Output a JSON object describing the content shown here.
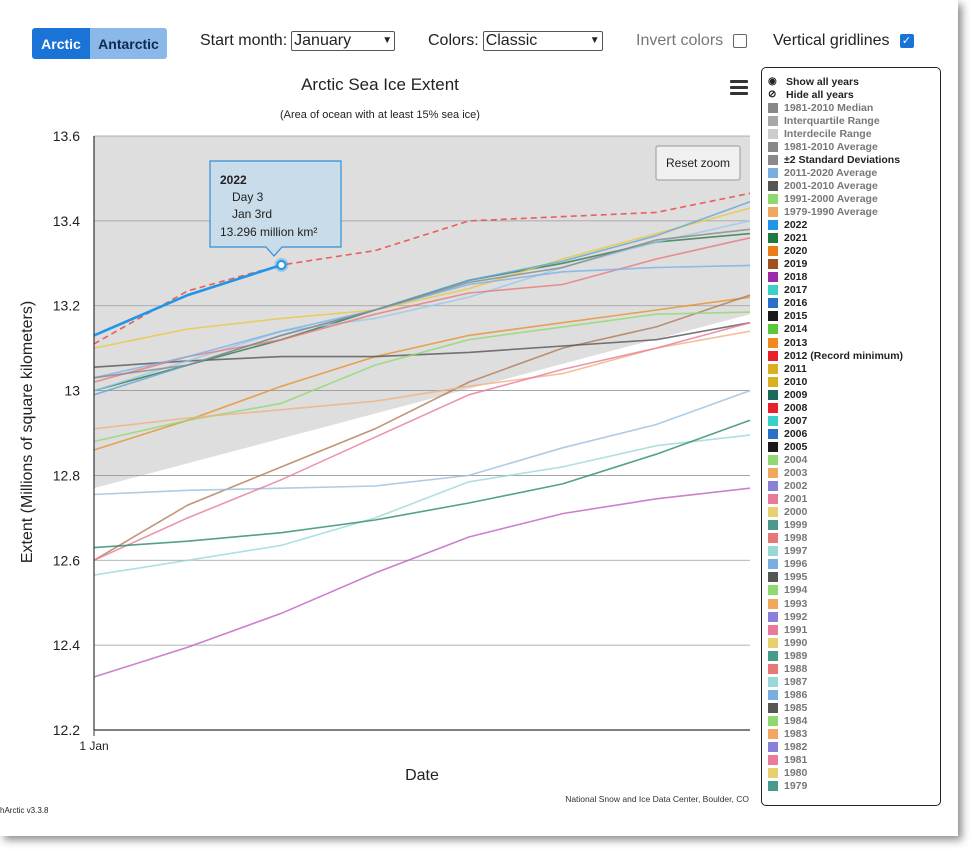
{
  "toolbar": {
    "arctic_label": "Arctic",
    "antarctic_label": "Antarctic",
    "start_month_label": "Start month:",
    "start_month_value": "January",
    "colors_label": "Colors:",
    "colors_value": "Classic",
    "invert_label": "Invert colors",
    "gridlines_label": "Vertical gridlines",
    "accent_color": "#1a73d6"
  },
  "footer": {
    "credit": "National Snow and Ice Data Center, Boulder, CO",
    "version": "hArctic v3.3.8"
  },
  "chart_data": {
    "type": "line",
    "title": "Arctic Sea Ice Extent",
    "subtitle": "(Area of ocean with at least 15% sea ice)",
    "xlabel": "Date",
    "ylabel": "Extent (Millions of square kilometers)",
    "x_tick_label": "1 Jan",
    "xlim": [
      1,
      8
    ],
    "ylim": [
      12.2,
      13.6
    ],
    "y_ticks": [
      "12.2",
      "12.4",
      "12.6",
      "12.8",
      "13",
      "13.2",
      "13.4",
      "13.6"
    ],
    "reset_zoom_label": "Reset zoom",
    "vertical_gridlines": true,
    "band_2sd": {
      "upper": 13.6,
      "lower_start": 12.77,
      "lower_end": 13.18
    },
    "tooltip": {
      "title": "2022",
      "line1": "Day 3",
      "line2": "Jan 3rd",
      "line3": "13.296 million km²"
    },
    "x": [
      1,
      2,
      3,
      4,
      5,
      6,
      7,
      8
    ],
    "series": [
      {
        "name": "2022",
        "color": "#2196e8",
        "width": 2.6,
        "values": [
          13.13,
          13.225,
          13.296,
          null,
          null,
          null,
          null,
          null
        ]
      },
      {
        "name": "2012 (Record minimum)",
        "color": "#e8605a",
        "dash": true,
        "width": 1.6,
        "values": [
          13.11,
          13.235,
          13.296,
          13.33,
          13.4,
          13.41,
          13.42,
          13.465
        ]
      },
      {
        "name": "2021",
        "color": "#2a7a4a",
        "values": [
          13.0,
          13.06,
          13.12,
          13.19,
          13.26,
          13.3,
          13.35,
          13.37
        ]
      },
      {
        "name": "2020",
        "color": "#e8902a",
        "values": [
          12.86,
          12.93,
          13.01,
          13.08,
          13.13,
          13.16,
          13.19,
          13.22
        ]
      },
      {
        "name": "2019",
        "color": "#b07a5a",
        "values": [
          12.6,
          12.73,
          12.82,
          12.91,
          13.02,
          13.1,
          13.15,
          13.225
        ]
      },
      {
        "name": "2018",
        "color": "#c060c0",
        "values": [
          12.325,
          12.395,
          12.475,
          12.57,
          12.655,
          12.71,
          12.745,
          12.77
        ]
      },
      {
        "name": "2017",
        "color": "#9ad8d8",
        "values": [
          12.565,
          12.6,
          12.635,
          12.7,
          12.785,
          12.82,
          12.87,
          12.895
        ]
      },
      {
        "name": "2016",
        "color": "#9abfe0",
        "values": [
          12.755,
          12.765,
          12.77,
          12.775,
          12.8,
          12.865,
          12.92,
          13.0
        ]
      },
      {
        "name": "2015",
        "color": "#555555",
        "values": [
          13.055,
          13.07,
          13.08,
          13.08,
          13.09,
          13.105,
          13.12,
          13.16
        ]
      },
      {
        "name": "2014",
        "color": "#90d870",
        "values": [
          12.88,
          12.93,
          12.97,
          13.06,
          13.12,
          13.15,
          13.18,
          13.185
        ]
      },
      {
        "name": "2013",
        "color": "#f0b080",
        "values": [
          12.91,
          12.935,
          12.955,
          12.975,
          13.01,
          13.04,
          13.1,
          13.14
        ]
      },
      {
        "name": "2011",
        "color": "#e8c840",
        "values": [
          13.1,
          13.145,
          13.17,
          13.19,
          13.24,
          13.31,
          13.37,
          13.43
        ]
      },
      {
        "name": "2010",
        "color": "#60a8d8",
        "values": [
          12.99,
          13.06,
          13.13,
          13.19,
          13.26,
          13.305,
          13.365,
          13.445
        ]
      },
      {
        "name": "2009",
        "color": "#9ac8e8",
        "values": [
          13.0,
          13.07,
          13.14,
          13.17,
          13.22,
          13.29,
          13.35,
          13.4
        ]
      },
      {
        "name": "2008",
        "color": "#e87878",
        "values": [
          13.02,
          13.08,
          13.12,
          13.18,
          13.23,
          13.25,
          13.31,
          13.36
        ]
      },
      {
        "name": "2007",
        "color": "#7ab0e8",
        "values": [
          13.03,
          13.08,
          13.14,
          13.19,
          13.25,
          13.28,
          13.29,
          13.295
        ]
      },
      {
        "name": "2006",
        "color": "#888888",
        "values": [
          13.03,
          13.06,
          13.13,
          13.19,
          13.255,
          13.29,
          13.355,
          13.38
        ]
      },
      {
        "name": "2005",
        "color": "#e87a9a",
        "values": [
          12.6,
          12.7,
          12.79,
          12.89,
          12.99,
          13.05,
          13.1,
          13.16
        ]
      },
      {
        "name": "2004",
        "color": "#2a8a6a",
        "values": [
          12.63,
          12.645,
          12.665,
          12.695,
          12.735,
          12.78,
          12.85,
          12.93
        ]
      }
    ],
    "legend": [
      {
        "label": "Show all years",
        "icon": "eye-icon"
      },
      {
        "label": "Hide all years",
        "icon": "eye-slash-icon"
      },
      {
        "label": "1981-2010 Median",
        "color": "#888888",
        "muted": true
      },
      {
        "label": "Interquartile Range",
        "color": "#a8a8a8",
        "muted": true
      },
      {
        "label": "Interdecile Range",
        "color": "#cccccc",
        "muted": true
      },
      {
        "label": "1981-2010 Average",
        "color": "#888888",
        "muted": true
      },
      {
        "label": "±2 Standard Deviations",
        "color": "#8a8a8a"
      },
      {
        "label": "2011-2020 Average",
        "color": "#7aaee0",
        "muted": true
      },
      {
        "label": "2001-2010 Average",
        "color": "#555555",
        "muted": true
      },
      {
        "label": "1991-2000 Average",
        "color": "#90d870",
        "muted": true
      },
      {
        "label": "1979-1990 Average",
        "color": "#f0a860",
        "muted": true
      },
      {
        "label": "2022",
        "color": "#2196e8"
      },
      {
        "label": "2021",
        "color": "#1e7a3e"
      },
      {
        "label": "2020",
        "color": "#e87d1a"
      },
      {
        "label": "2019",
        "color": "#a0521d"
      },
      {
        "label": "2018",
        "color": "#9c2aa8"
      },
      {
        "label": "2017",
        "color": "#3ad0c8"
      },
      {
        "label": "2016",
        "color": "#2a70c8"
      },
      {
        "label": "2015",
        "color": "#1a1a1a"
      },
      {
        "label": "2014",
        "color": "#5ac83a"
      },
      {
        "label": "2013",
        "color": "#f08a20"
      },
      {
        "label": "2012 (Record minimum)",
        "color": "#e8202a"
      },
      {
        "label": "2011",
        "color": "#d8b020"
      },
      {
        "label": "2010",
        "color": "#d8b020"
      },
      {
        "label": "2009",
        "color": "#1a6a5a"
      },
      {
        "label": "2008",
        "color": "#e8202a"
      },
      {
        "label": "2007",
        "color": "#3ad0c8"
      },
      {
        "label": "2006",
        "color": "#2a70c8"
      },
      {
        "label": "2005",
        "color": "#1a1a1a"
      },
      {
        "label": "2004",
        "color": "#90d870",
        "muted": true
      },
      {
        "label": "2003",
        "color": "#f0a860",
        "muted": true
      },
      {
        "label": "2002",
        "color": "#8a80d8",
        "muted": true
      },
      {
        "label": "2001",
        "color": "#e87a9a",
        "muted": true
      },
      {
        "label": "2000",
        "color": "#e8d070",
        "muted": true
      },
      {
        "label": "1999",
        "color": "#4a9a8a",
        "muted": true
      },
      {
        "label": "1998",
        "color": "#e87878",
        "muted": true
      },
      {
        "label": "1997",
        "color": "#9ad8d8",
        "muted": true
      },
      {
        "label": "1996",
        "color": "#7aaee0",
        "muted": true
      },
      {
        "label": "1995",
        "color": "#555555",
        "muted": true
      },
      {
        "label": "1994",
        "color": "#90d870",
        "muted": true
      },
      {
        "label": "1993",
        "color": "#f0a860",
        "muted": true
      },
      {
        "label": "1992",
        "color": "#8a80d8",
        "muted": true
      },
      {
        "label": "1991",
        "color": "#e87a9a",
        "muted": true
      },
      {
        "label": "1990",
        "color": "#e8d070",
        "muted": true
      },
      {
        "label": "1989",
        "color": "#4a9a8a",
        "muted": true
      },
      {
        "label": "1988",
        "color": "#e87878",
        "muted": true
      },
      {
        "label": "1987",
        "color": "#9ad8d8",
        "muted": true
      },
      {
        "label": "1986",
        "color": "#7aaee0",
        "muted": true
      },
      {
        "label": "1985",
        "color": "#555555",
        "muted": true
      },
      {
        "label": "1984",
        "color": "#90d870",
        "muted": true
      },
      {
        "label": "1983",
        "color": "#f0a860",
        "muted": true
      },
      {
        "label": "1982",
        "color": "#8a80d8",
        "muted": true
      },
      {
        "label": "1981",
        "color": "#e87a9a",
        "muted": true
      },
      {
        "label": "1980",
        "color": "#e8d070",
        "muted": true
      },
      {
        "label": "1979",
        "color": "#4a9a8a",
        "muted": true
      }
    ]
  }
}
